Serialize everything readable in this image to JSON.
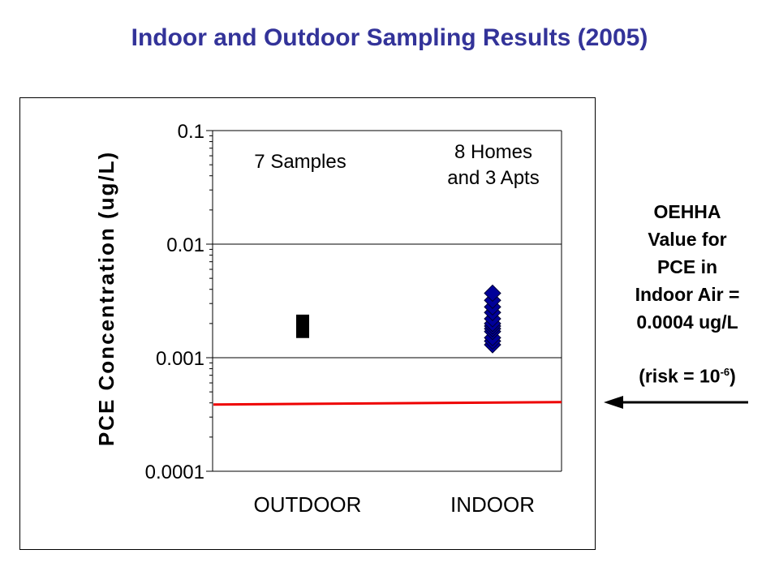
{
  "title": "Indoor and Outdoor Sampling Results (2005)",
  "note": {
    "lines": [
      "OEHHA",
      "Value for",
      "PCE in",
      "Indoor Air =",
      "0.0004 ug/L"
    ],
    "risk_prefix": "(risk = 10",
    "risk_exponent": "-6",
    "risk_suffix": ")"
  },
  "chart_data": {
    "type": "scatter",
    "title": "",
    "xlabel": "",
    "ylabel": "PCE Concentration (ug/L)",
    "y_scale": "log",
    "ylim": [
      0.0001,
      0.1
    ],
    "y_ticks": [
      0.0001,
      0.001,
      0.01,
      0.1
    ],
    "y_tick_labels": [
      "0.0001",
      "0.001",
      "0.01",
      "0.1"
    ],
    "grid": "horizontal major gridlines",
    "categories": [
      "OUTDOOR",
      "INDOOR"
    ],
    "annotations": [
      {
        "category": "OUTDOOR",
        "lines": [
          "7 Samples"
        ]
      },
      {
        "category": "INDOOR",
        "lines": [
          "8 Homes",
          "and 3 Apts"
        ]
      }
    ],
    "series": [
      {
        "category": "OUTDOOR",
        "marker": "square",
        "color": "#000000",
        "values": [
          0.0017,
          0.0018,
          0.0018,
          0.0019,
          0.0019,
          0.002,
          0.0021
        ]
      },
      {
        "category": "INDOOR",
        "marker": "diamond",
        "color": "#000099",
        "values": [
          0.0013,
          0.0014,
          0.0015,
          0.0017,
          0.0018,
          0.0019,
          0.002,
          0.0022,
          0.0025,
          0.0028,
          0.0032,
          0.0037
        ]
      }
    ],
    "reference_line": {
      "value": 0.0004,
      "color": "#ee0000"
    }
  }
}
